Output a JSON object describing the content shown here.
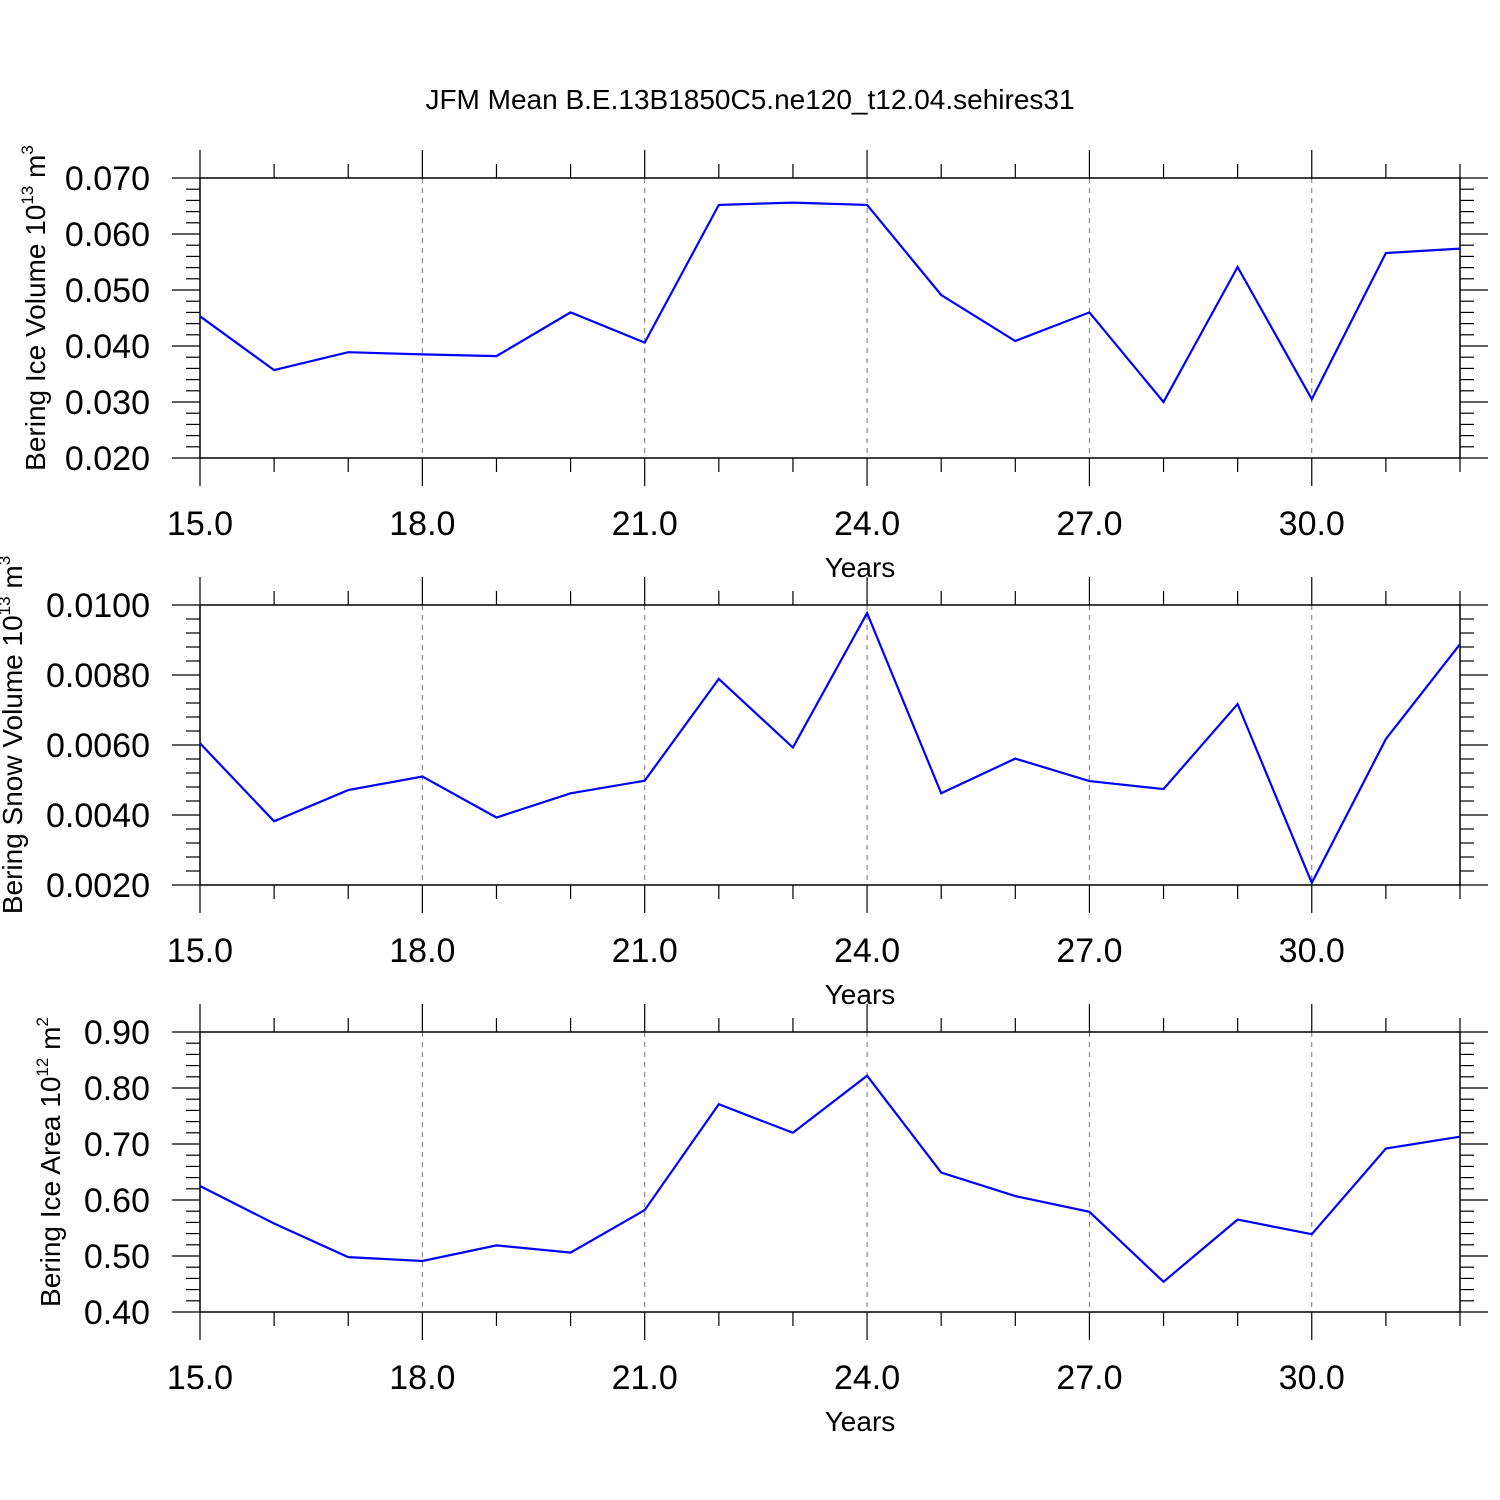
{
  "title": "JFM Mean B.E.13B1850C5.ne120_t12.04.sehires31",
  "colors": {
    "line": "#0000ff",
    "axis": "#000000",
    "grid": "#777777",
    "background": "#ffffff"
  },
  "chart_data": [
    {
      "type": "line",
      "xlabel": "Years",
      "ylabel": {
        "text": "Bering Ice Volume 10",
        "sup": "13",
        "unit": " m",
        "unit_sup": "3"
      },
      "xlim": [
        15,
        32
      ],
      "ylim": [
        0.02,
        0.07
      ],
      "xticks": [
        15,
        18,
        21,
        24,
        27,
        30
      ],
      "xtick_labels": [
        "15.0",
        "18.0",
        "21.0",
        "24.0",
        "27.0",
        "30.0"
      ],
      "yticks": [
        0.02,
        0.03,
        0.04,
        0.05,
        0.06,
        0.07
      ],
      "ytick_labels": [
        "0.020",
        "0.030",
        "0.040",
        "0.050",
        "0.060",
        "0.070"
      ],
      "x_minor_step": 1,
      "y_minor_step": 0.002,
      "grid": "vertical dashed at major x ticks",
      "series": [
        {
          "x": [
            15,
            16,
            17,
            18,
            19,
            20,
            21,
            22,
            23,
            24,
            25,
            26,
            27,
            28,
            29,
            30,
            31,
            32
          ],
          "values": [
            0.0453,
            0.0357,
            0.0389,
            0.0385,
            0.0382,
            0.046,
            0.0406,
            0.0652,
            0.0656,
            0.0652,
            0.0491,
            0.0409,
            0.046,
            0.03,
            0.0541,
            0.0305,
            0.0566,
            0.0574
          ]
        }
      ]
    },
    {
      "type": "line",
      "xlabel": "Years",
      "ylabel": {
        "text": "Bering Snow Volume 10",
        "sup": "13",
        "unit": " m",
        "unit_sup": "3"
      },
      "xlim": [
        15,
        32
      ],
      "ylim": [
        0.002,
        0.01
      ],
      "xticks": [
        15,
        18,
        21,
        24,
        27,
        30
      ],
      "xtick_labels": [
        "15.0",
        "18.0",
        "21.0",
        "24.0",
        "27.0",
        "30.0"
      ],
      "yticks": [
        0.002,
        0.004,
        0.006,
        0.008,
        0.01
      ],
      "ytick_labels": [
        "0.0020",
        "0.0040",
        "0.0060",
        "0.0080",
        "0.0100"
      ],
      "x_minor_step": 1,
      "y_minor_step": 0.0004,
      "grid": "vertical dashed at major x ticks",
      "series": [
        {
          "x": [
            15,
            16,
            17,
            18,
            19,
            20,
            21,
            22,
            23,
            24,
            25,
            26,
            27,
            28,
            29,
            30,
            31,
            32
          ],
          "values": [
            0.00605,
            0.00382,
            0.00471,
            0.0051,
            0.00393,
            0.00462,
            0.00498,
            0.00789,
            0.00593,
            0.00977,
            0.00462,
            0.00561,
            0.00497,
            0.00474,
            0.00717,
            0.00206,
            0.00617,
            0.00888
          ]
        }
      ]
    },
    {
      "type": "line",
      "xlabel": "Years",
      "ylabel": {
        "text": "Bering Ice Area 10",
        "sup": "12",
        "unit": " m",
        "unit_sup": "2"
      },
      "xlim": [
        15,
        32
      ],
      "ylim": [
        0.4,
        0.9
      ],
      "xticks": [
        15,
        18,
        21,
        24,
        27,
        30
      ],
      "xtick_labels": [
        "15.0",
        "18.0",
        "21.0",
        "24.0",
        "27.0",
        "30.0"
      ],
      "yticks": [
        0.4,
        0.5,
        0.6,
        0.7,
        0.8,
        0.9
      ],
      "ytick_labels": [
        "0.40",
        "0.50",
        "0.60",
        "0.70",
        "0.80",
        "0.90"
      ],
      "x_minor_step": 1,
      "y_minor_step": 0.02,
      "grid": "vertical dashed at major x ticks",
      "series": [
        {
          "x": [
            15,
            16,
            17,
            18,
            19,
            20,
            21,
            22,
            23,
            24,
            25,
            26,
            27,
            28,
            29,
            30,
            31,
            32
          ],
          "values": [
            0.625,
            0.558,
            0.498,
            0.491,
            0.519,
            0.506,
            0.582,
            0.771,
            0.72,
            0.822,
            0.649,
            0.607,
            0.579,
            0.454,
            0.565,
            0.539,
            0.692,
            0.713
          ]
        }
      ]
    }
  ]
}
